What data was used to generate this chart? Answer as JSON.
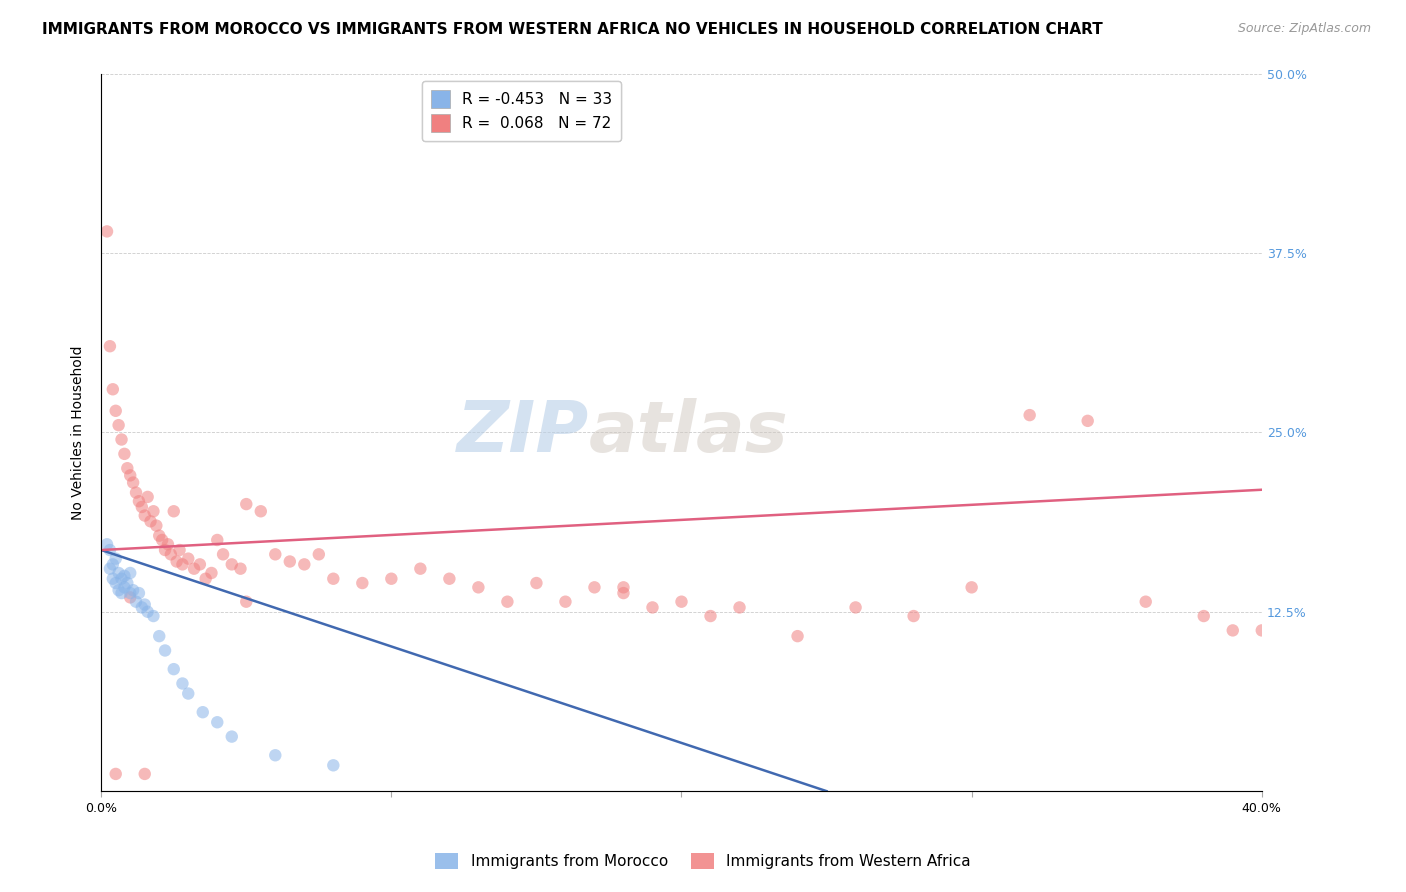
{
  "title": "IMMIGRANTS FROM MOROCCO VS IMMIGRANTS FROM WESTERN AFRICA NO VEHICLES IN HOUSEHOLD CORRELATION CHART",
  "source": "Source: ZipAtlas.com",
  "ylabel": "No Vehicles in Household",
  "xlim": [
    0.0,
    0.4
  ],
  "ylim": [
    0.0,
    0.5
  ],
  "xticks": [
    0.0,
    0.1,
    0.2,
    0.3,
    0.4
  ],
  "xticklabels": [
    "0.0%",
    "",
    "",
    "",
    "40.0%"
  ],
  "yticks_right": [
    0.0,
    0.125,
    0.25,
    0.375,
    0.5
  ],
  "yticklabels_right": [
    "",
    "12.5%",
    "25.0%",
    "37.5%",
    "50.0%"
  ],
  "morocco_R": -0.453,
  "morocco_N": 33,
  "western_africa_R": 0.068,
  "western_africa_N": 72,
  "morocco_color": "#89B4E8",
  "western_africa_color": "#F08080",
  "morocco_line_color": "#4169B0",
  "western_africa_line_color": "#E06080",
  "watermark_zip": "ZIP",
  "watermark_atlas": "atlas",
  "background_color": "#ffffff",
  "morocco_x": [
    0.002,
    0.003,
    0.003,
    0.004,
    0.004,
    0.005,
    0.005,
    0.006,
    0.006,
    0.007,
    0.007,
    0.008,
    0.008,
    0.009,
    0.01,
    0.01,
    0.011,
    0.012,
    0.013,
    0.014,
    0.015,
    0.016,
    0.018,
    0.02,
    0.022,
    0.025,
    0.028,
    0.03,
    0.035,
    0.04,
    0.045,
    0.06,
    0.08
  ],
  "morocco_y": [
    0.172,
    0.168,
    0.155,
    0.158,
    0.148,
    0.162,
    0.145,
    0.152,
    0.14,
    0.148,
    0.138,
    0.15,
    0.142,
    0.145,
    0.152,
    0.138,
    0.14,
    0.132,
    0.138,
    0.128,
    0.13,
    0.125,
    0.122,
    0.108,
    0.098,
    0.085,
    0.075,
    0.068,
    0.055,
    0.048,
    0.038,
    0.025,
    0.018
  ],
  "western_africa_x": [
    0.002,
    0.003,
    0.004,
    0.005,
    0.006,
    0.007,
    0.008,
    0.009,
    0.01,
    0.011,
    0.012,
    0.013,
    0.014,
    0.015,
    0.016,
    0.017,
    0.018,
    0.019,
    0.02,
    0.021,
    0.022,
    0.023,
    0.024,
    0.025,
    0.026,
    0.027,
    0.028,
    0.03,
    0.032,
    0.034,
    0.036,
    0.038,
    0.04,
    0.042,
    0.045,
    0.048,
    0.05,
    0.055,
    0.06,
    0.065,
    0.07,
    0.075,
    0.08,
    0.09,
    0.1,
    0.11,
    0.12,
    0.13,
    0.14,
    0.15,
    0.16,
    0.17,
    0.18,
    0.19,
    0.2,
    0.21,
    0.22,
    0.24,
    0.26,
    0.28,
    0.3,
    0.32,
    0.34,
    0.36,
    0.38,
    0.39,
    0.4,
    0.05,
    0.18,
    0.01,
    0.015,
    0.005
  ],
  "western_africa_y": [
    0.39,
    0.31,
    0.28,
    0.265,
    0.255,
    0.245,
    0.235,
    0.225,
    0.22,
    0.215,
    0.208,
    0.202,
    0.198,
    0.192,
    0.205,
    0.188,
    0.195,
    0.185,
    0.178,
    0.175,
    0.168,
    0.172,
    0.165,
    0.195,
    0.16,
    0.168,
    0.158,
    0.162,
    0.155,
    0.158,
    0.148,
    0.152,
    0.175,
    0.165,
    0.158,
    0.155,
    0.2,
    0.195,
    0.165,
    0.16,
    0.158,
    0.165,
    0.148,
    0.145,
    0.148,
    0.155,
    0.148,
    0.142,
    0.132,
    0.145,
    0.132,
    0.142,
    0.142,
    0.128,
    0.132,
    0.122,
    0.128,
    0.108,
    0.128,
    0.122,
    0.142,
    0.262,
    0.258,
    0.132,
    0.122,
    0.112,
    0.112,
    0.132,
    0.138,
    0.135,
    0.012,
    0.012
  ],
  "morocco_line_x": [
    0.0,
    0.25
  ],
  "morocco_line_y": [
    0.168,
    0.0
  ],
  "western_africa_line_x": [
    0.0,
    0.4
  ],
  "western_africa_line_y": [
    0.168,
    0.21
  ],
  "marker_size": 80,
  "alpha": 0.55,
  "title_fontsize": 11,
  "source_fontsize": 9,
  "axis_label_fontsize": 10,
  "tick_fontsize": 9,
  "legend_fontsize": 11
}
